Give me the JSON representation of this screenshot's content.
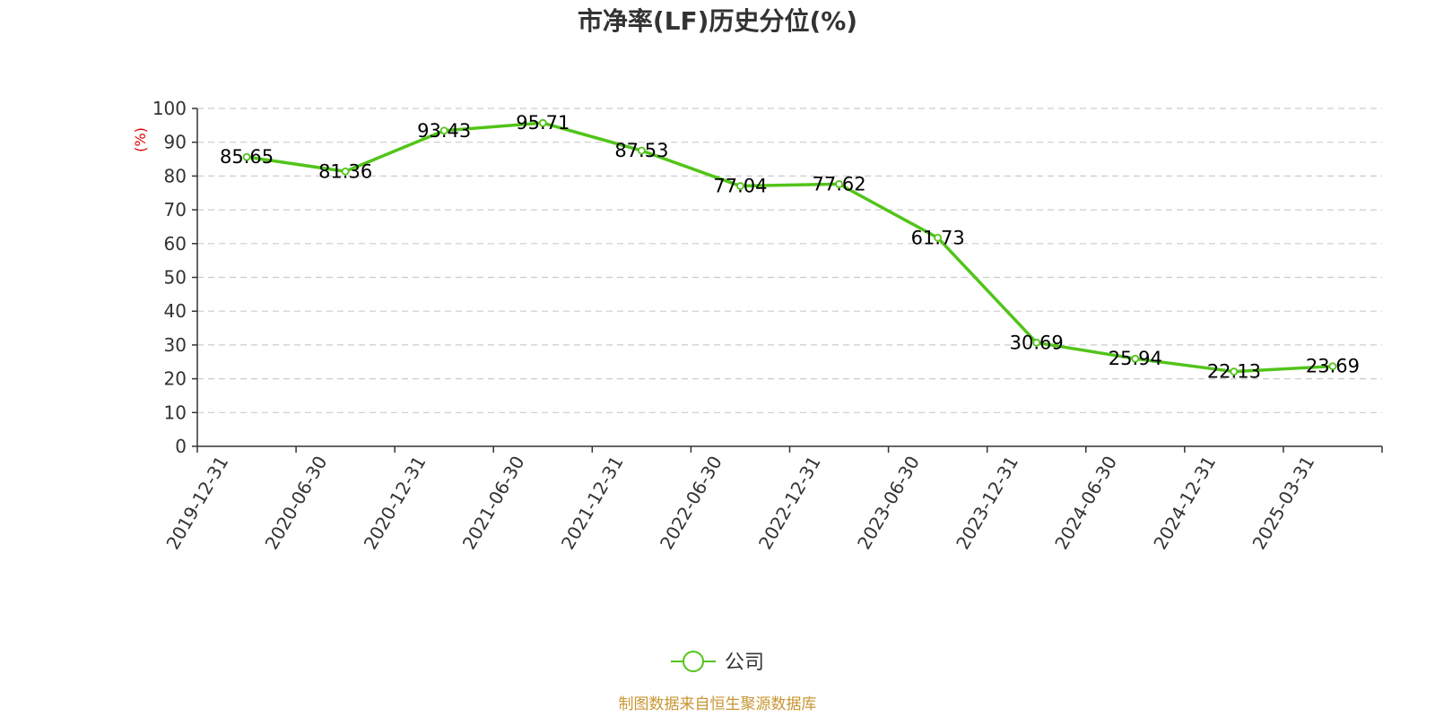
{
  "chart_data": {
    "type": "line",
    "title": "市净率(LF)历史分位(%)",
    "ylabel": "(%)",
    "xlabel": "",
    "x": [
      "2019-12-31",
      "2020-06-30",
      "2020-12-31",
      "2021-06-30",
      "2021-12-31",
      "2022-06-30",
      "2022-12-31",
      "2023-06-30",
      "2023-12-31",
      "2024-06-30",
      "2024-12-31",
      "2025-03-31"
    ],
    "series": [
      {
        "name": "公司",
        "values": [
          85.65,
          81.36,
          93.43,
          95.71,
          87.53,
          77.04,
          77.62,
          61.73,
          30.69,
          25.94,
          22.13,
          23.69
        ],
        "labels": [
          "85.65",
          "81.36",
          "93.43",
          "95.71",
          "87.53",
          "77.04",
          "77.62",
          "61.73",
          "30.69",
          "25.94",
          "22.13",
          "23.69"
        ],
        "color": "#52c41a"
      }
    ],
    "ylim": [
      0,
      100
    ],
    "yticks": [
      0,
      10,
      20,
      30,
      40,
      50,
      60,
      70,
      80,
      90,
      100
    ],
    "ytick_labels": [
      "0",
      "10",
      "20",
      "30",
      "40",
      "50",
      "60",
      "70",
      "80",
      "90",
      "100"
    ],
    "grid": true,
    "legend_position": "bottom-center"
  },
  "source_note": "制图数据来自恒生聚源数据库",
  "colors": {
    "axis": "#333333",
    "grid": "#cccccc",
    "ylabel": "#e00000",
    "source": "#c89632"
  }
}
